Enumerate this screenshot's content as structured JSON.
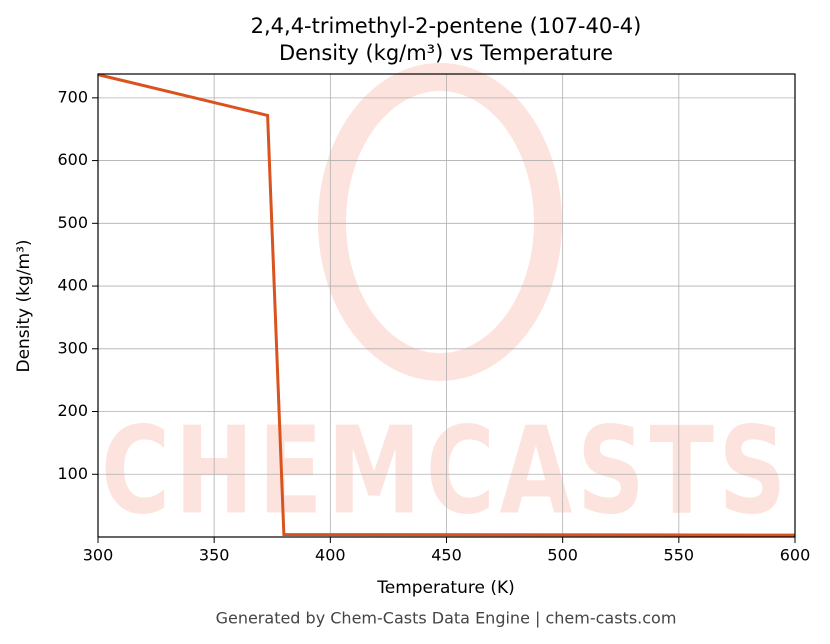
{
  "chart_data": {
    "type": "line",
    "title": "2,4,4-trimethyl-2-pentene (107-40-4)",
    "subtitle": "Density (kg/m³) vs Temperature",
    "x_label": "Temperature (K)",
    "y_label": "Density (kg/m³)",
    "footer": "Generated by Chem-Casts Data Engine | chem-casts.com",
    "watermark": "CHEMCASTS",
    "x": [
      300,
      373,
      380,
      600
    ],
    "values": [
      737,
      672,
      4,
      3
    ],
    "color": "#d9531e",
    "xlim": [
      300,
      600
    ],
    "ylim": [
      0,
      738
    ],
    "xticks": [
      300,
      350,
      400,
      450,
      500,
      550,
      600
    ],
    "yticks": [
      100,
      200,
      300,
      400,
      500,
      600,
      700
    ],
    "grid": true
  }
}
